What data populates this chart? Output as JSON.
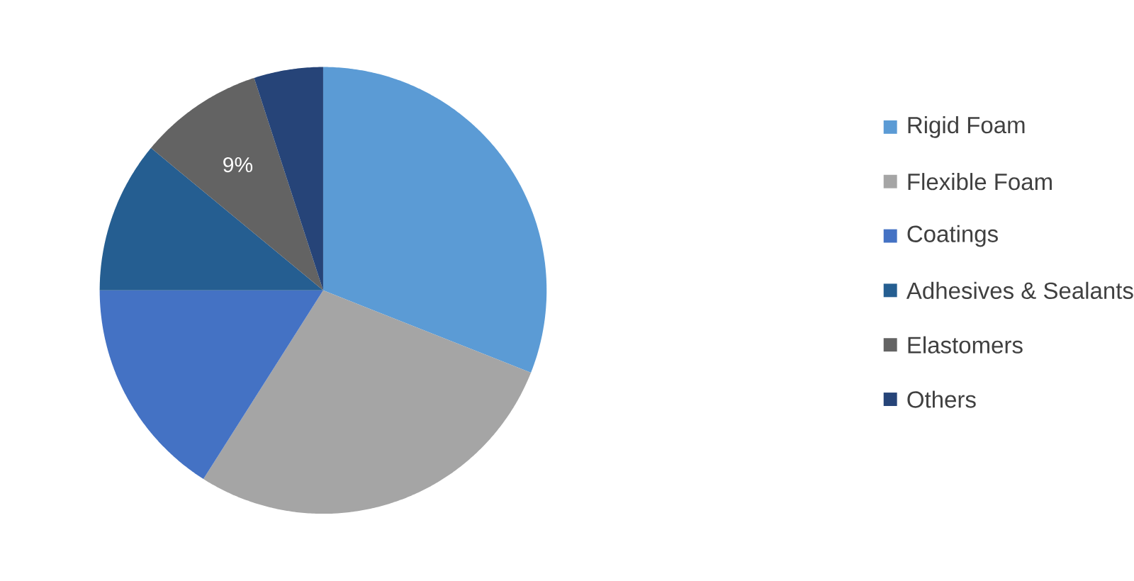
{
  "chart_data": {
    "type": "pie",
    "categories": [
      "Rigid Foam",
      "Flexible Foam",
      "Coatings",
      "Adhesives & Sealants",
      "Elastomers",
      "Others"
    ],
    "values": [
      31,
      28,
      16,
      11,
      9,
      5
    ],
    "colors": [
      "#5b9bd5",
      "#a5a5a5",
      "#4472c4",
      "#255e91",
      "#636363",
      "#264478"
    ],
    "value_labels": [
      null,
      null,
      null,
      null,
      "9%",
      null
    ],
    "legend": "right"
  }
}
